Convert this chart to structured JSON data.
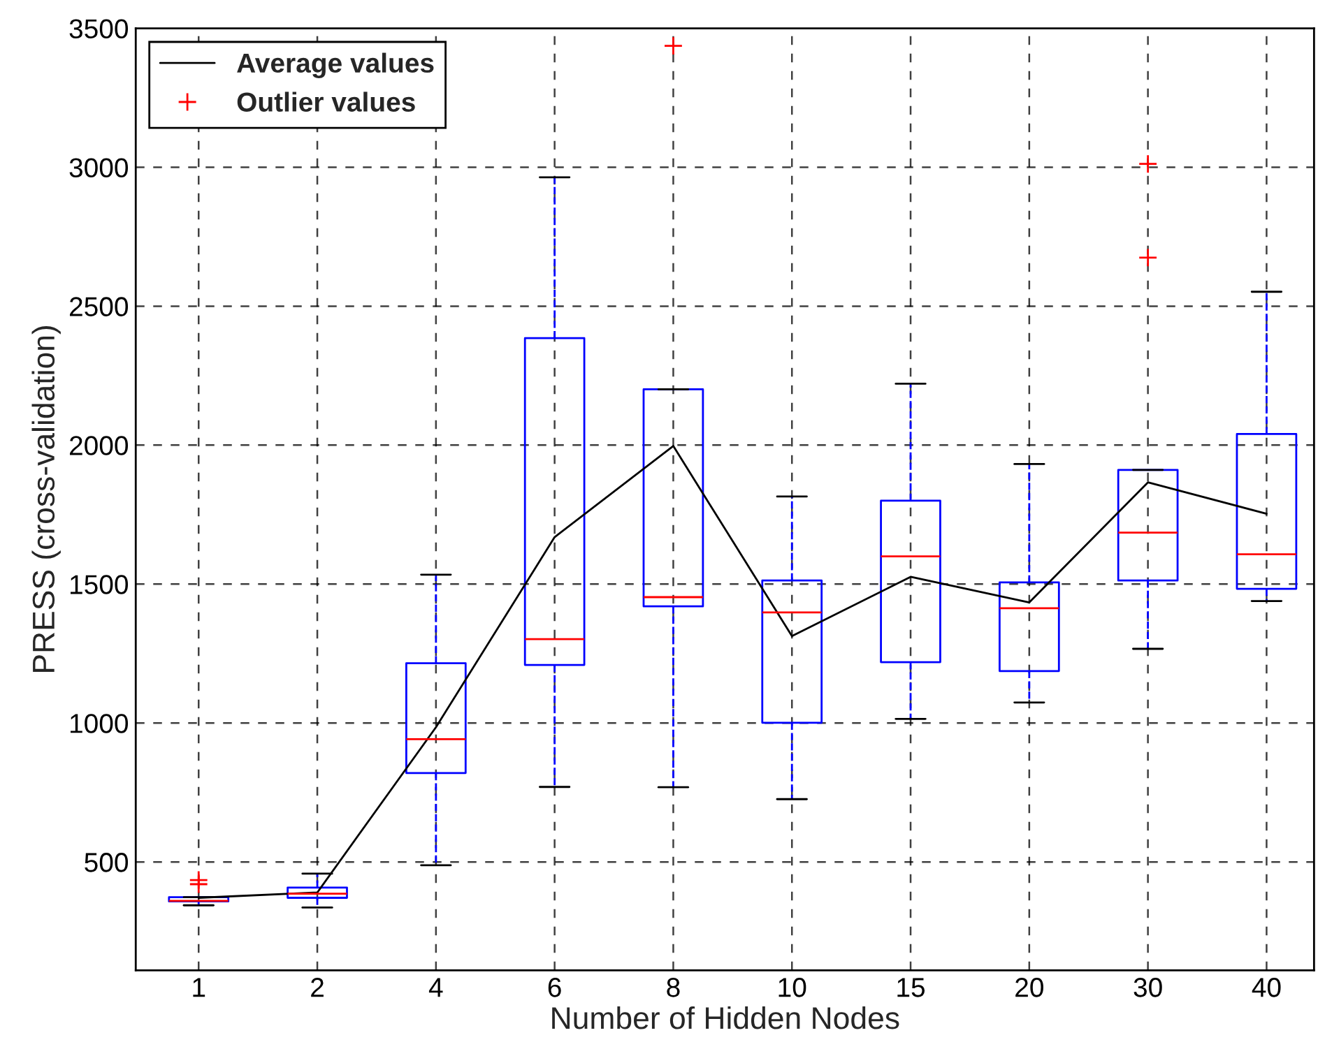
{
  "chart_data": {
    "type": "box",
    "xlabel": "Number of Hidden Nodes",
    "ylabel": "PRESS (cross-validation)",
    "categories": [
      "1",
      "2",
      "4",
      "6",
      "8",
      "10",
      "15",
      "20",
      "30",
      "40"
    ],
    "ylim": [
      110,
      3500
    ],
    "yticks": [
      500,
      1000,
      1500,
      2000,
      2500,
      3000,
      3500
    ],
    "grid": true,
    "legend": "top left",
    "series": [
      {
        "color": "#0000ff",
        "boxes": [
          {
            "low": 344,
            "q1": 358,
            "median": 360,
            "q3": 373,
            "high": 373
          },
          {
            "low": 336,
            "q1": 371,
            "median": 386,
            "q3": 408,
            "high": 458
          },
          {
            "low": 488,
            "q1": 820,
            "median": 942,
            "q3": 1215,
            "high": 1534
          },
          {
            "low": 770,
            "q1": 1209,
            "median": 1302,
            "q3": 2385,
            "high": 2964
          },
          {
            "low": 769,
            "q1": 1420,
            "median": 1453,
            "q3": 2201,
            "high": 2201
          },
          {
            "low": 726,
            "q1": 1001,
            "median": 1398,
            "q3": 1513,
            "high": 1815
          },
          {
            "low": 1015,
            "q1": 1219,
            "median": 1600,
            "q3": 1800,
            "high": 2221
          },
          {
            "low": 1074,
            "q1": 1187,
            "median": 1413,
            "q3": 1506,
            "high": 1932
          },
          {
            "low": 1267,
            "q1": 1513,
            "median": 1685,
            "q3": 1911,
            "high": 1911
          },
          {
            "low": 1439,
            "q1": 1483,
            "median": 1607,
            "q3": 2040,
            "high": 2552
          }
        ]
      },
      {
        "type": "line",
        "name": "Average values",
        "color": "#000000",
        "marker": "none",
        "line_style": "solid",
        "values": [
          371,
          390,
          985,
          1669,
          1997,
          1313,
          1526,
          1434,
          1866,
          1753
        ]
      },
      {
        "type": "scatter",
        "name": "Outlier values",
        "color": "#ff0000",
        "marker": "cross",
        "x": [
          "1",
          "1",
          "8",
          "30",
          "30"
        ],
        "values": [
          420,
          435,
          3437,
          3012,
          2675
        ]
      }
    ]
  }
}
